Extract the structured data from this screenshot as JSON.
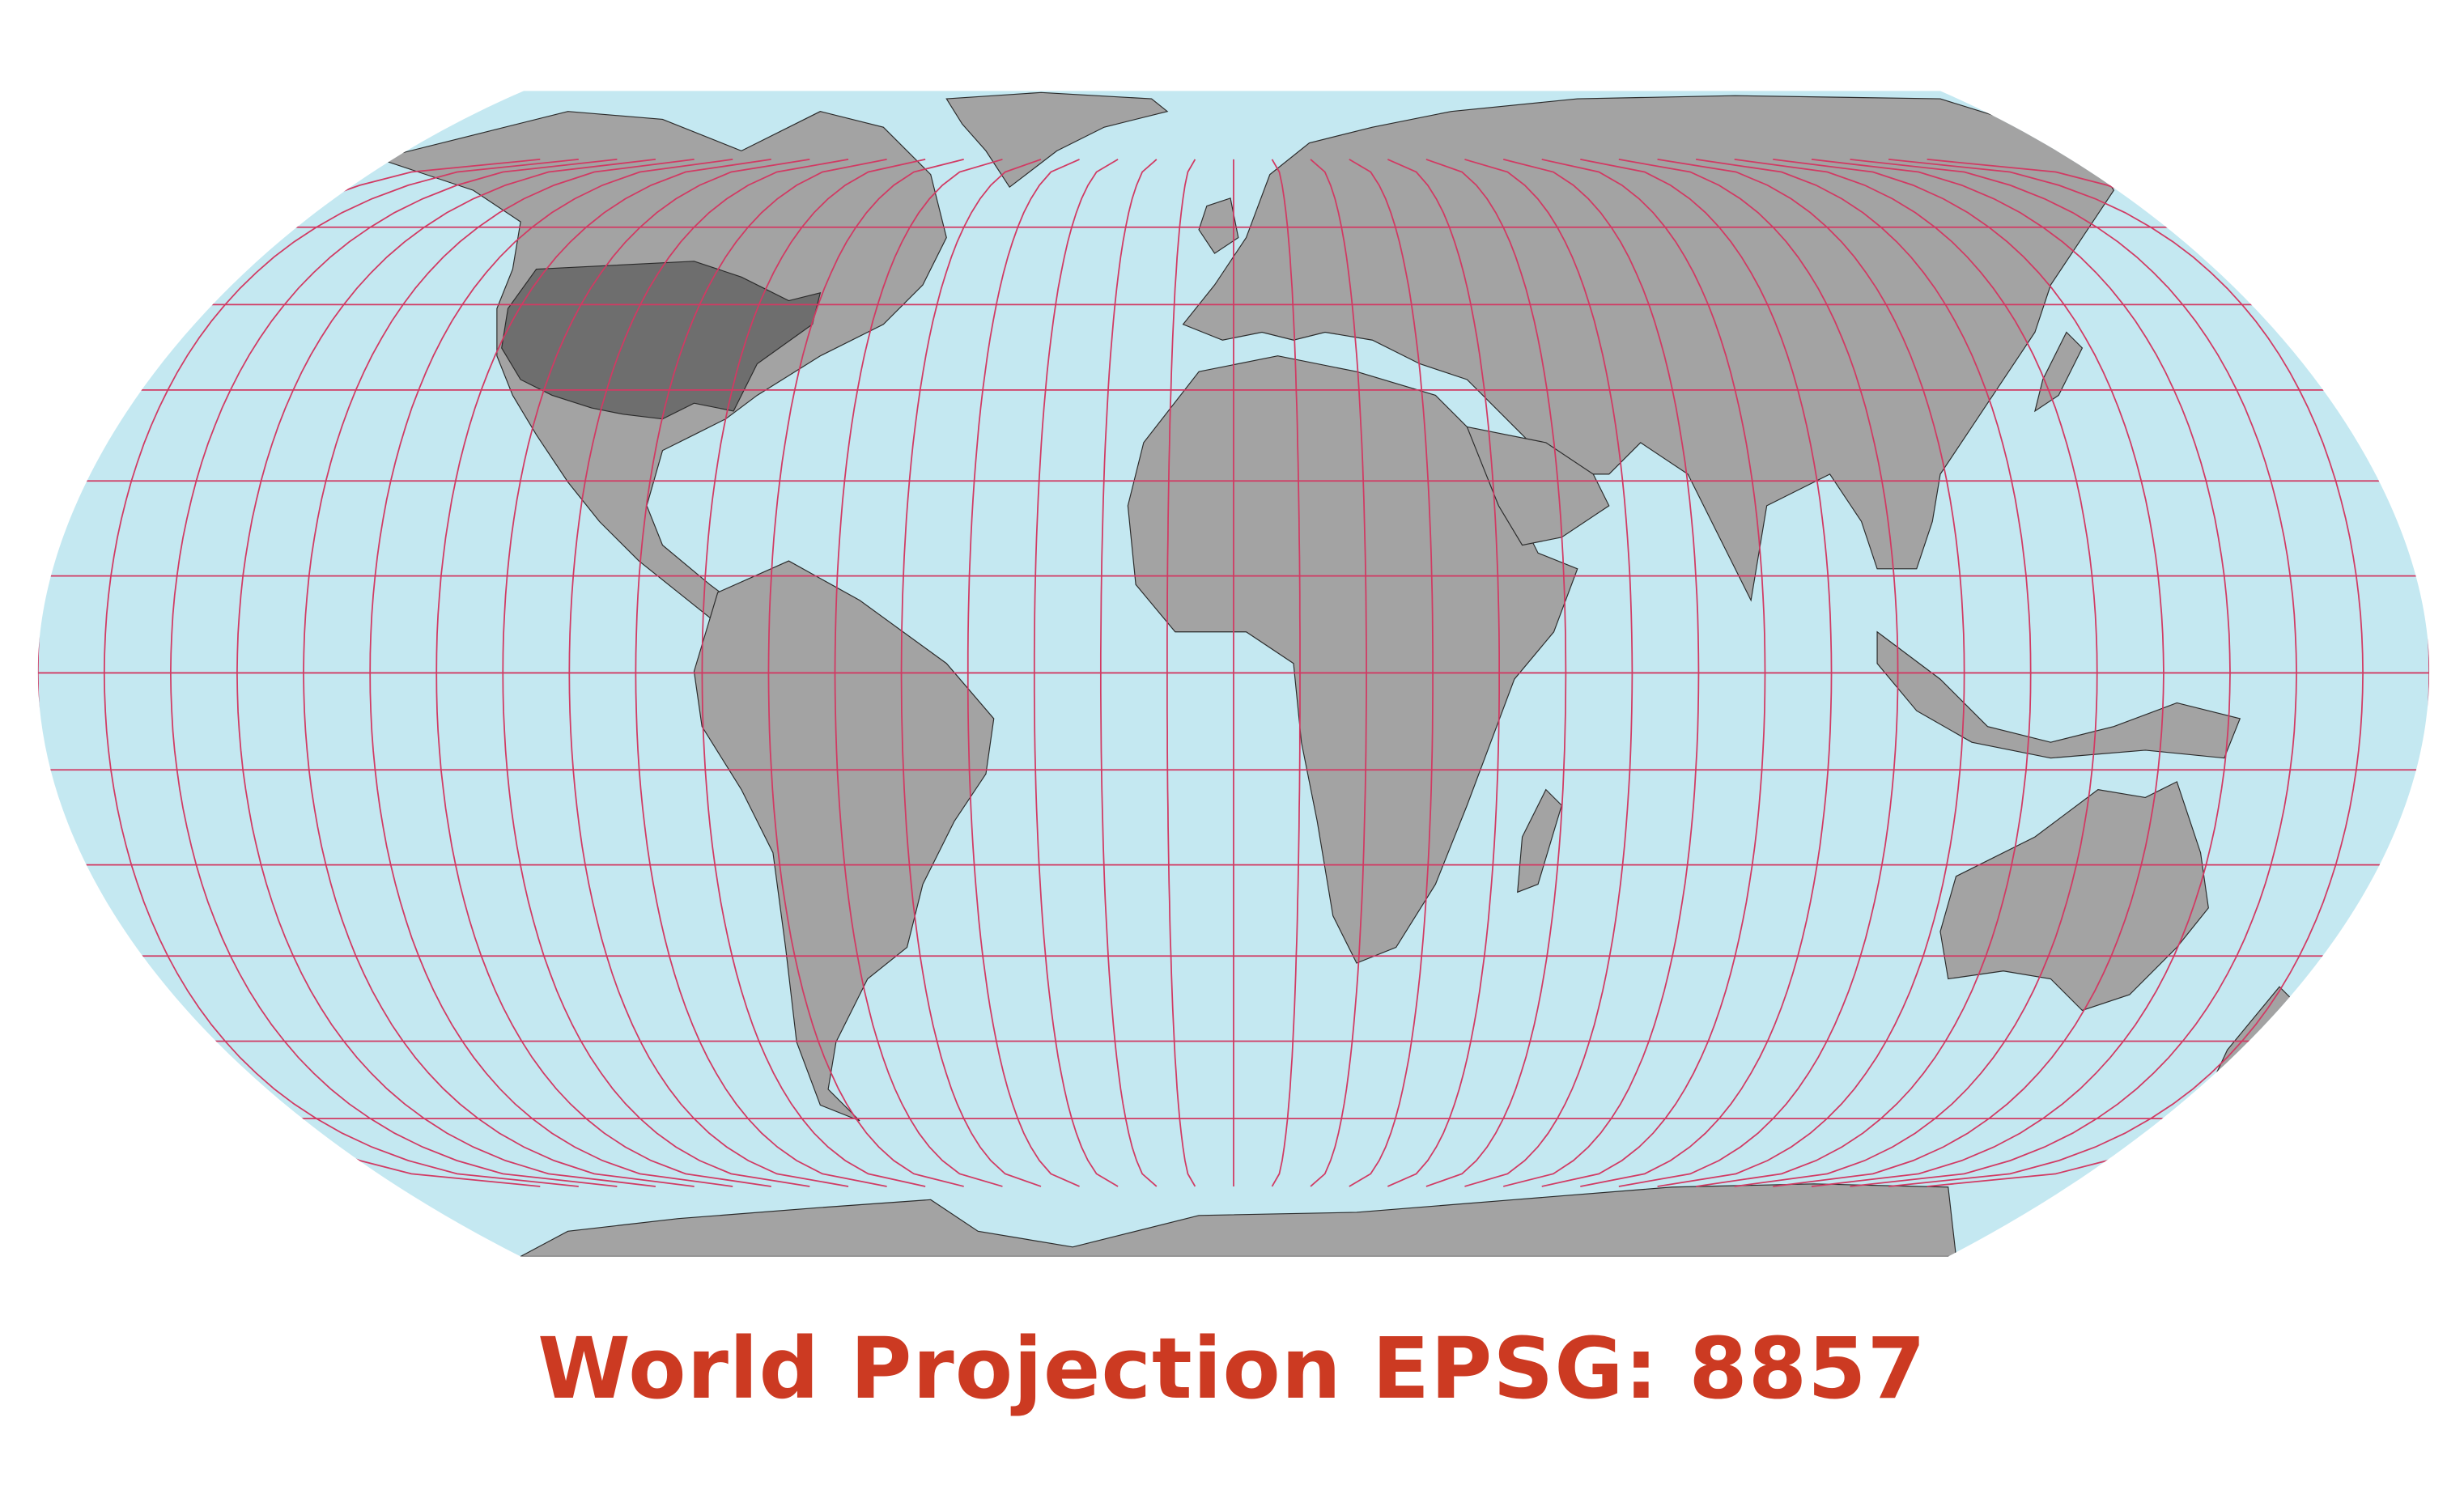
{
  "map": {
    "title": "World Projection EPSG: 8857",
    "projection_epsg": "8857",
    "highlighted_region": "United States (lower 48, state boundaries shown)",
    "graticule": {
      "meridian_step_deg": 10,
      "parallel_step_deg": 15,
      "color": "#d13a63"
    },
    "colors": {
      "ocean": "#c4e8f1",
      "land": "#a3a3a3",
      "land_highlight": "#6e6e6e",
      "border": "#2b2b2b",
      "title": "#cc3a22",
      "background": "#ffffff"
    }
  }
}
